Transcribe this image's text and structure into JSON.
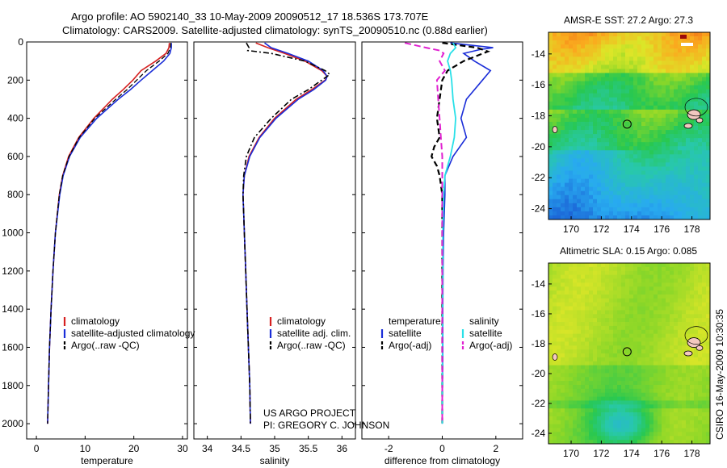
{
  "header": {
    "line1": "Argo profile: AO 5902140_33 10-May-2009 20090512_17 18.536S 173.707E",
    "line2": "Climatology: CARS2009. Satellite-adjusted climatology: synTS_20090510.nc (0.88d earlier)"
  },
  "footer": {
    "project": "US ARGO PROJECT",
    "pi": "PI: GREGORY C. JOHNSON",
    "stamp": "CSIRO 16-May-2009 10:30:35"
  },
  "colors": {
    "climatology": "#d62020",
    "satellite": "#1a2dd8",
    "argo": "#000000",
    "salinity_satellite": "#28e0e8",
    "salinity_argo": "#e020d0"
  },
  "chart_data": [
    {
      "type": "line",
      "panel": "temperature",
      "xlabel": "temperature",
      "ylabel": "",
      "xlim": [
        -2,
        31
      ],
      "ylim": [
        2080,
        0
      ],
      "xticks": [
        "0",
        "10",
        "20",
        "30"
      ],
      "yticks": [
        "0",
        "200",
        "400",
        "600",
        "800",
        "1000",
        "1200",
        "1400",
        "1600",
        "1800",
        "2000"
      ],
      "legend": [
        "climatology",
        "satellite-adjusted climatology",
        "Argo(..raw -QC)"
      ],
      "series": [
        {
          "name": "climatology",
          "y": [
            5,
            30,
            60,
            100,
            150,
            200,
            250,
            300,
            400,
            500,
            600,
            700,
            800,
            1000,
            1200,
            1400,
            1600,
            1800,
            2000
          ],
          "x": [
            27.3,
            27.2,
            26.6,
            24.5,
            21.5,
            19.8,
            17.8,
            15.6,
            11.8,
            8.7,
            6.6,
            5.4,
            4.7,
            3.9,
            3.4,
            3.0,
            2.7,
            2.5,
            2.3
          ]
        },
        {
          "name": "satellite-adjusted climatology",
          "y": [
            5,
            30,
            60,
            100,
            150,
            200,
            250,
            300,
            400,
            500,
            600,
            700,
            800,
            1000,
            1200,
            1400,
            1600,
            1800,
            2000
          ],
          "x": [
            27.7,
            27.7,
            27.4,
            26.1,
            23.8,
            21.5,
            19.3,
            16.8,
            12.4,
            9.0,
            6.8,
            5.5,
            4.8,
            3.9,
            3.4,
            3.0,
            2.7,
            2.5,
            2.3
          ]
        },
        {
          "name": "Argo(..raw -QC)",
          "y": [
            5,
            30,
            60,
            100,
            150,
            200,
            250,
            300,
            400,
            500,
            600,
            700,
            800,
            1000,
            1200,
            1400,
            1600,
            1800,
            2000
          ],
          "x": [
            27.6,
            27.5,
            27.0,
            25.2,
            22.6,
            20.6,
            18.6,
            16.3,
            12.0,
            8.8,
            6.7,
            5.4,
            4.7,
            3.9,
            3.4,
            3.0,
            2.7,
            2.5,
            2.3
          ]
        }
      ]
    },
    {
      "type": "line",
      "panel": "salinity",
      "xlabel": "salinity",
      "xlim": [
        33.8,
        36.2
      ],
      "ylim": [
        2080,
        0
      ],
      "xticks": [
        "34",
        "34.5",
        "35",
        "35.5",
        "36"
      ],
      "legend": [
        "climatology",
        "satellite adj. clim.",
        "Argo(..raw -QC)"
      ],
      "series": [
        {
          "name": "climatology",
          "y": [
            5,
            30,
            60,
            100,
            150,
            180,
            200,
            250,
            300,
            400,
            500,
            600,
            700,
            800,
            900,
            1000,
            1200,
            1400,
            1600,
            1800,
            2000
          ],
          "x": [
            34.72,
            34.9,
            35.15,
            35.45,
            35.7,
            35.78,
            35.75,
            35.55,
            35.32,
            35.0,
            34.77,
            34.62,
            34.55,
            34.53,
            34.54,
            34.55,
            34.57,
            34.59,
            34.61,
            34.63,
            34.64
          ]
        },
        {
          "name": "satellite adj. clim.",
          "y": [
            5,
            30,
            60,
            100,
            150,
            180,
            200,
            250,
            300,
            400,
            500,
            600,
            700,
            800,
            900,
            1000,
            1200,
            1400,
            1600,
            1800,
            2000
          ],
          "x": [
            34.85,
            34.95,
            35.2,
            35.5,
            35.72,
            35.78,
            35.76,
            35.58,
            35.35,
            35.02,
            34.78,
            34.63,
            34.55,
            34.53,
            34.54,
            34.55,
            34.57,
            34.59,
            34.61,
            34.63,
            34.64
          ]
        },
        {
          "name": "Argo(..raw -QC)",
          "y": [
            5,
            30,
            45,
            60,
            100,
            150,
            170,
            200,
            250,
            300,
            400,
            500,
            600,
            650,
            700,
            800,
            900,
            1000,
            1200,
            1400,
            1600,
            1800,
            2000
          ],
          "x": [
            34.58,
            34.62,
            34.6,
            34.95,
            35.45,
            35.75,
            35.82,
            35.7,
            35.5,
            35.25,
            34.95,
            34.7,
            34.58,
            34.56,
            34.54,
            34.53,
            34.54,
            34.55,
            34.57,
            34.59,
            34.61,
            34.63,
            34.64
          ]
        }
      ]
    },
    {
      "type": "line",
      "panel": "difference",
      "xlabel": "difference from climatology",
      "xlim": [
        -3.0,
        3.0
      ],
      "ylim": [
        2080,
        0
      ],
      "xticks": [
        "-2",
        "0",
        "2"
      ],
      "legend": [
        "temperature",
        "salinity",
        "satellite",
        "satellite",
        "Argo(-adj)",
        "Argo(-adj)"
      ],
      "series": [
        {
          "name": "temperature satellite",
          "y": [
            5,
            30,
            40,
            60,
            100,
            150,
            200,
            300,
            400,
            500,
            600,
            700,
            800,
            1000,
            1200,
            1400,
            1600,
            1800,
            2000
          ],
          "x": [
            0.3,
            1.9,
            1.4,
            0.8,
            1.2,
            1.8,
            1.5,
            0.9,
            0.7,
            0.9,
            0.4,
            0.1,
            0.1,
            0.05,
            0.03,
            0.02,
            0.02,
            0.01,
            0.0
          ]
        },
        {
          "name": "temperature Argo(-adj)",
          "y": [
            5,
            30,
            50,
            100,
            150,
            200,
            300,
            400,
            500,
            550,
            600,
            650,
            700,
            800,
            1000,
            1200,
            1400,
            1600,
            1800,
            2000
          ],
          "x": [
            0.0,
            1.3,
            1.7,
            0.8,
            0.2,
            0.0,
            -0.1,
            -0.2,
            -0.1,
            -0.3,
            -0.4,
            -0.2,
            -0.1,
            0.0,
            0.0,
            0.0,
            0.0,
            0.0,
            0.0,
            0.0
          ]
        },
        {
          "name": "salinity satellite",
          "y": [
            5,
            30,
            60,
            100,
            150,
            200,
            300,
            400,
            500,
            600,
            700,
            800,
            1000,
            1200,
            1400,
            1600,
            1800,
            2000
          ],
          "x": [
            0.4,
            0.5,
            0.3,
            0.2,
            0.3,
            0.35,
            0.4,
            0.5,
            0.45,
            0.3,
            0.1,
            0.05,
            0.02,
            0.02,
            0.01,
            0.01,
            0.0,
            0.0
          ]
        },
        {
          "name": "salinity Argo(-adj)",
          "y": [
            5,
            30,
            45,
            60,
            100,
            150,
            200,
            300,
            400,
            500,
            600,
            700,
            800,
            1000,
            1200,
            1400,
            1600,
            1800,
            2000
          ],
          "x": [
            -1.4,
            -0.6,
            -0.1,
            0.05,
            -0.1,
            0.1,
            -0.2,
            -0.15,
            -0.1,
            -0.05,
            0.0,
            0.0,
            0.0,
            0.0,
            0.0,
            0.0,
            0.0,
            0.0,
            0.0
          ]
        }
      ]
    },
    {
      "type": "heatmap",
      "panel": "sst-map",
      "title": "AMSR-E SST: 27.2 Argo: 27.3",
      "xlim": [
        168.5,
        179.2
      ],
      "ylim": [
        -24.7,
        -12.6
      ],
      "xticks": [
        "170",
        "172",
        "174",
        "176",
        "178"
      ],
      "yticks": [
        "-14",
        "-16",
        "-18",
        "-20",
        "-22",
        "-24"
      ],
      "marker": {
        "lon": 173.707,
        "lat": -18.536
      }
    },
    {
      "type": "heatmap",
      "panel": "sla-map",
      "title": "Altimetric SLA: 0.15 Argo: 0.085",
      "xlim": [
        168.5,
        179.2
      ],
      "ylim": [
        -24.7,
        -12.6
      ],
      "xticks": [
        "170",
        "172",
        "174",
        "176",
        "178"
      ],
      "yticks": [
        "-14",
        "-16",
        "-18",
        "-20",
        "-22",
        "-24"
      ],
      "marker": {
        "lon": 173.707,
        "lat": -18.536
      }
    }
  ]
}
